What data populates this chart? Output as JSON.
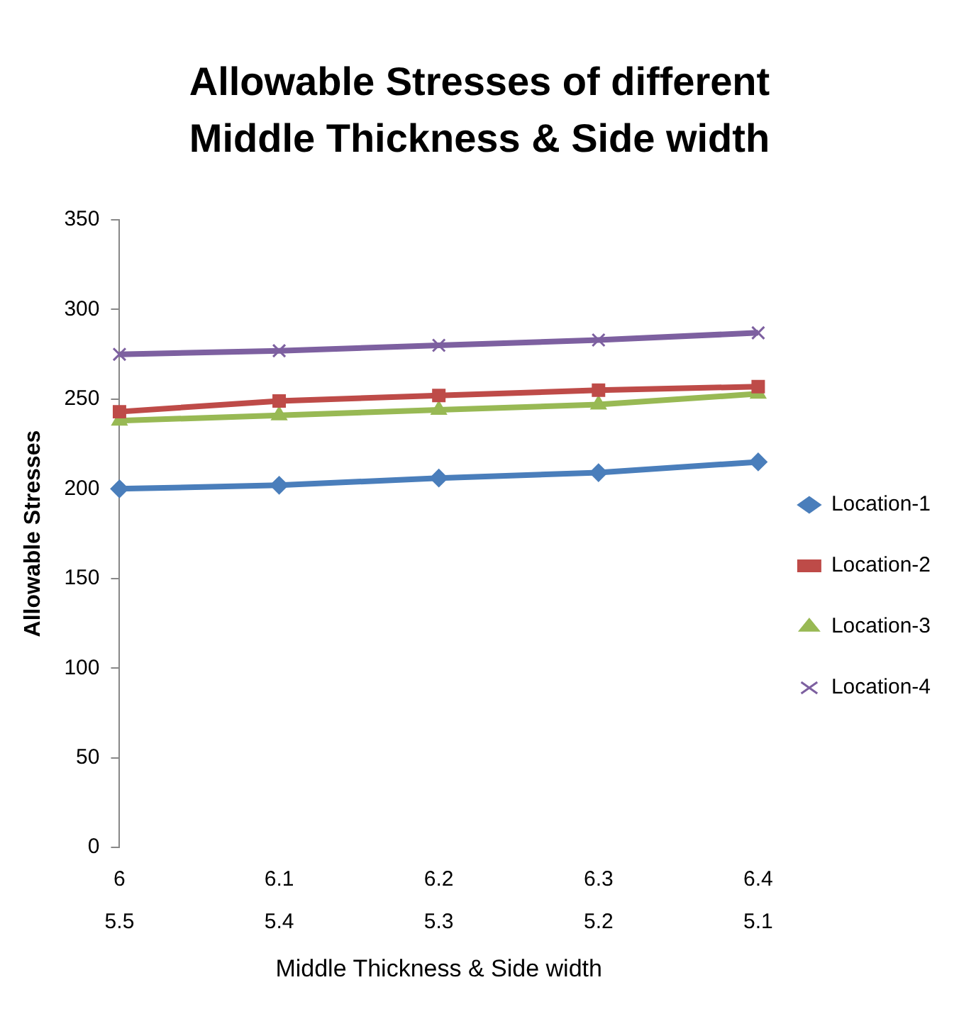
{
  "chart_data": {
    "type": "line",
    "title": "Allowable Stresses of different Middle Thickness & Side width",
    "xlabel": "Middle Thickness & Side width",
    "ylabel": "Allowable Stresses",
    "categories": [
      "6\n5.5",
      "6.1\n5.4",
      "6.2\n5.3",
      "6.3\n5.2",
      "6.4\n5.1"
    ],
    "series": [
      {
        "name": "Location-1",
        "color": "#4a7ebb",
        "marker": "diamond",
        "values": [
          200,
          202,
          206,
          209,
          215
        ]
      },
      {
        "name": "Location-2",
        "color": "#be4b48",
        "marker": "square",
        "values": [
          243,
          249,
          252,
          255,
          257
        ]
      },
      {
        "name": "Location-3",
        "color": "#98b954",
        "marker": "triangle",
        "values": [
          238,
          241,
          244,
          247,
          253
        ]
      },
      {
        "name": "Location-4",
        "color": "#7d60a0",
        "marker": "cross",
        "values": [
          275,
          277,
          280,
          283,
          287
        ]
      }
    ],
    "ylim": [
      0,
      350
    ],
    "yticks": [
      0,
      50,
      100,
      150,
      200,
      250,
      300,
      350
    ],
    "grid": false,
    "legend": "right"
  }
}
